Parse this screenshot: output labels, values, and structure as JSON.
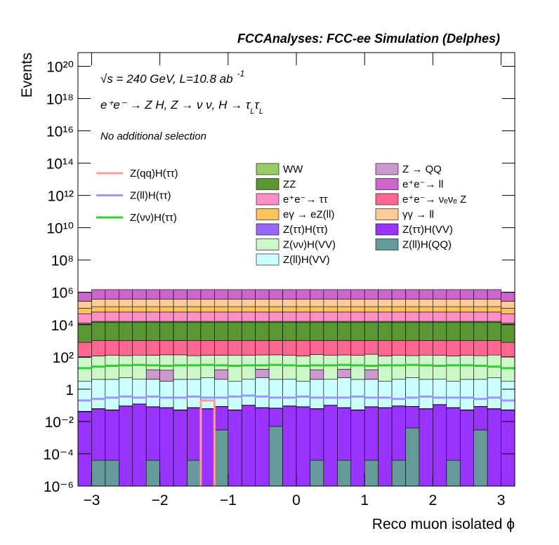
{
  "chart_data": {
    "type": "histogram",
    "stacked": true,
    "yscale": "log",
    "title": "FCCAnalyses: FCC-ee Simulation (Delphes)",
    "annotations": [
      [
        "√s = 240 GeV, L=10.8 ab",
        "-1"
      ],
      [
        "e⁺e⁻ → Z H, Z  → ν ν, H → τ",
        "L",
        "τ",
        "L"
      ],
      [
        "No additional selection"
      ]
    ],
    "xlabel": "Reco muon isolated ϕ",
    "ylabel": "Events",
    "xlim": [
      -3.2,
      3.2
    ],
    "ylim": [
      1e-06,
      7e+20
    ],
    "xticks": [
      {
        "value": -3,
        "label": "−3"
      },
      {
        "value": -2,
        "label": "−2"
      },
      {
        "value": -1,
        "label": "−1"
      },
      0,
      1,
      2,
      3
    ],
    "yticks": [
      {
        "value": 1e-06,
        "label": "10⁻⁶"
      },
      {
        "value": 0.0001,
        "label": "10⁻⁴"
      },
      {
        "value": 0.01,
        "label": "10⁻²"
      },
      1,
      {
        "value": 100,
        "label": "10²"
      },
      {
        "value": 10000,
        "label": "10⁴"
      },
      {
        "value": 1000000,
        "label": "10⁶"
      },
      {
        "value": 100000000.0,
        "label": "10⁸"
      },
      {
        "value": 10000000000.0,
        "label": "10¹⁰"
      },
      {
        "value": 1000000000000.0,
        "label": "10¹²"
      },
      {
        "value": 100000000000000.0,
        "label": "10¹⁴"
      },
      {
        "value": 1e+16,
        "label": "10¹⁶"
      },
      {
        "value": 1e+18,
        "label": "10¹⁸"
      },
      {
        "value": 1e+20,
        "label": "10²⁰"
      }
    ],
    "bins": [
      -3.2,
      -3,
      -2.8,
      -2.6,
      -2.4,
      -2.2,
      -2,
      -1.8,
      -1.6,
      -1.4,
      -1.2,
      -1,
      -0.8,
      -0.6,
      -0.4,
      -0.2,
      0,
      0.2,
      0.4,
      0.6,
      0.8,
      1,
      1.2,
      1.4,
      1.6,
      1.8,
      2,
      2.2,
      2.4,
      2.6,
      2.8,
      3,
      3.2
    ],
    "series": [
      {
        "name": "WW",
        "color": "#99cc66",
        "values": [
          1500,
          2000,
          2000,
          2000,
          2000,
          2000,
          2000,
          2000,
          2000,
          2000,
          2000,
          2000,
          2000,
          2000,
          2000,
          2000,
          2000,
          2000,
          2000,
          2000,
          2000,
          2000,
          2000,
          2000,
          2000,
          2000,
          2000,
          2000,
          2000,
          2000,
          2000,
          1500
        ]
      },
      {
        "name": "ZZ",
        "color": "#5a9632",
        "values": [
          10000,
          13000,
          13000,
          13000,
          13000,
          13000,
          13000,
          13000,
          13000,
          13000,
          13000,
          13000,
          13000,
          13000,
          13000,
          13000,
          13000,
          13000,
          13000,
          13000,
          13000,
          13000,
          13000,
          13000,
          13000,
          13000,
          13000,
          13000,
          13000,
          13000,
          13000,
          10000
        ]
      },
      {
        "name": "e⁺e⁻→ ττ",
        "color": "#ff8fc8",
        "values": [
          35000,
          44000,
          44000,
          44000,
          44000,
          44000,
          44000,
          44000,
          44000,
          44000,
          44000,
          44000,
          44000,
          44000,
          44000,
          44000,
          44000,
          44000,
          44000,
          44000,
          44000,
          44000,
          44000,
          44000,
          44000,
          44000,
          44000,
          44000,
          44000,
          44000,
          44000,
          35000
        ]
      },
      {
        "name": "eγ → eZ(ll)",
        "color": "#fbc35c",
        "values": [
          55000,
          70000,
          70000,
          70000,
          70000,
          70000,
          70000,
          70000,
          70000,
          70000,
          70000,
          70000,
          70000,
          70000,
          70000,
          70000,
          70000,
          70000,
          70000,
          70000,
          70000,
          70000,
          70000,
          70000,
          70000,
          70000,
          70000,
          70000,
          70000,
          70000,
          70000,
          55000
        ]
      },
      {
        "name": "Z(ττ)H(ττ)",
        "color": "#9966ff",
        "values": [
          0.003,
          0.003,
          0.003,
          0.003,
          0.003,
          0.003,
          0.003,
          0.003,
          0.003,
          0.003,
          0.003,
          0.003,
          0.003,
          0.003,
          0.003,
          0.003,
          0.003,
          0.003,
          0.003,
          0.003,
          0.003,
          0.003,
          0.003,
          0.003,
          0.003,
          0.003,
          0.003,
          0.003,
          0.003,
          0.003,
          0.003,
          0.003
        ]
      },
      {
        "name": "Z(νν)H(VV)",
        "color": "#ccf7c8",
        "values": [
          90,
          110,
          120,
          115,
          125,
          110,
          120,
          130,
          115,
          120,
          110,
          125,
          120,
          115,
          130,
          120,
          110,
          125,
          120,
          115,
          120,
          130,
          110,
          120,
          115,
          125,
          120,
          110,
          120,
          115,
          125,
          95
        ]
      },
      {
        "name": "Z(ll)H(VV)",
        "color": "#ccffff",
        "values": [
          3,
          4,
          4,
          5,
          4,
          4,
          3,
          4,
          4,
          5,
          4,
          3,
          4,
          5,
          4,
          4,
          3,
          4,
          4,
          5,
          4,
          4,
          3,
          4,
          5,
          4,
          4,
          3,
          4,
          4,
          5,
          3
        ]
      },
      {
        "name": "Z → QQ",
        "color": "#cc99cc",
        "values": [
          0,
          0,
          0,
          0,
          0,
          12,
          12,
          0,
          0,
          0,
          12,
          0,
          0,
          12,
          0,
          0,
          0,
          12,
          0,
          12,
          0,
          12,
          0,
          0,
          0,
          0,
          0,
          0,
          0,
          0,
          0,
          0
        ]
      },
      {
        "name": "e⁺e⁻→ ll",
        "color": "#cc66cc",
        "values": [
          750000,
          1100000,
          1100000,
          1100000,
          1100000,
          1100000,
          1100000,
          1100000,
          1100000,
          1100000,
          1100000,
          1100000,
          1100000,
          1100000,
          1100000,
          1100000,
          1100000,
          1100000,
          1100000,
          1100000,
          1100000,
          1100000,
          1100000,
          1100000,
          1100000,
          1100000,
          1100000,
          1100000,
          1100000,
          1100000,
          1100000,
          750000
        ]
      },
      {
        "name": "e⁺e⁻→ νₑνₑ Z",
        "color": "#ff6690",
        "values": [
          700,
          900,
          900,
          900,
          900,
          900,
          900,
          900,
          900,
          900,
          900,
          900,
          900,
          900,
          900,
          900,
          900,
          900,
          900,
          900,
          900,
          900,
          900,
          900,
          900,
          900,
          900,
          900,
          900,
          900,
          900,
          700
        ]
      },
      {
        "name": "γγ → ll",
        "color": "#ffcc99",
        "values": [
          180000,
          240000,
          240000,
          240000,
          240000,
          240000,
          240000,
          240000,
          240000,
          240000,
          240000,
          240000,
          240000,
          240000,
          240000,
          240000,
          240000,
          240000,
          240000,
          240000,
          240000,
          240000,
          240000,
          240000,
          240000,
          240000,
          240000,
          240000,
          240000,
          240000,
          240000,
          180000
        ]
      },
      {
        "name": "Z(ττ)H(VV)",
        "color": "#9933ff",
        "values": [
          0.04,
          0.06,
          0.05,
          0.09,
          0.12,
          0.08,
          0.07,
          0.05,
          0.07,
          0.06,
          0.08,
          0.05,
          0.1,
          0.07,
          0.06,
          0.09,
          0.08,
          0.06,
          0.1,
          0.07,
          0.05,
          0.08,
          0.07,
          0.09,
          0.08,
          0.06,
          0.11,
          0.07,
          0.05,
          0.08,
          0.06,
          0.05
        ]
      },
      {
        "name": "Z(ll)H(QQ)",
        "color": "#669999",
        "values": [
          0,
          4e-05,
          4e-05,
          0,
          0,
          4e-05,
          0,
          0,
          4e-05,
          0,
          0.003,
          0,
          0,
          0,
          0.005,
          0,
          0,
          4e-05,
          0,
          4e-05,
          0,
          4e-05,
          0,
          4e-05,
          0.004,
          0,
          0,
          4e-05,
          0,
          0.003,
          0,
          0
        ]
      }
    ],
    "lines": [
      {
        "name": "Z(qq)H(ττ)",
        "color": "#ff9999",
        "values": [
          0,
          0,
          0,
          0,
          0,
          0,
          0,
          0,
          0,
          0.2,
          0,
          0,
          0,
          0,
          0,
          0,
          0,
          0,
          0,
          0,
          0,
          0,
          0,
          0,
          0,
          0,
          0,
          0,
          0,
          0,
          0,
          0
        ]
      },
      {
        "name": "Z(ll)H(ττ)",
        "color": "#9999ff",
        "values": [
          0.2,
          0.25,
          0.3,
          0.35,
          0.3,
          0.35,
          0.3,
          0.3,
          0.35,
          0.3,
          0.3,
          0.35,
          0.4,
          0.35,
          0.3,
          0.3,
          0.35,
          0.3,
          0.3,
          0.3,
          0.35,
          0.3,
          0.3,
          0.25,
          0.3,
          0.35,
          0.3,
          0.3,
          0.3,
          0.25,
          0.3,
          0.2
        ]
      },
      {
        "name": "Z(νν)H(ττ)",
        "color": "#33cc33",
        "values": [
          20,
          25,
          28,
          30,
          32,
          30,
          28,
          30,
          30,
          32,
          30,
          28,
          30,
          30,
          32,
          30,
          28,
          30,
          30,
          32,
          30,
          28,
          30,
          30,
          32,
          30,
          28,
          30,
          30,
          28,
          25,
          20
        ]
      }
    ]
  }
}
